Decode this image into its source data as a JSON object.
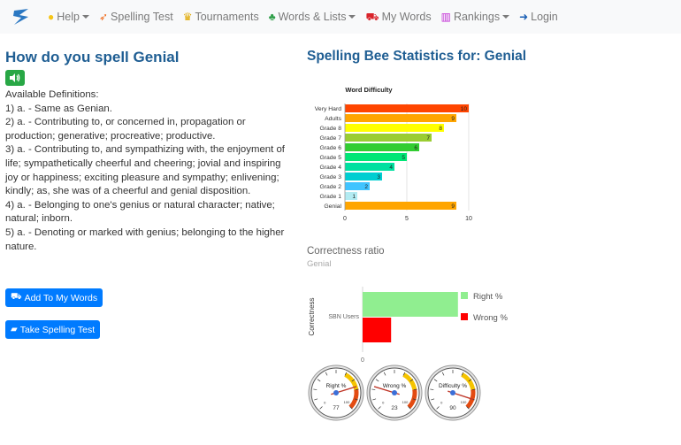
{
  "nav": {
    "help": "Help",
    "spelling_test": "Spelling Test",
    "tournaments": "Tournaments",
    "words_lists": "Words & Lists",
    "my_words": "My Words",
    "rankings": "Rankings",
    "login": "Login"
  },
  "word": {
    "title": "How do you spell Genial",
    "definitions_heading": "Available Definitions:",
    "definitions": [
      "1)  a. - Same as Genian.",
      "2)  a. - Contributing to, or concerned in, propagation or production; generative; procreative; productive.",
      "3)  a. - Contributing to, and sympathizing with, the enjoyment of life; sympathetically cheerful and cheering; jovial and inspiring joy or happiness; exciting pleasure and sympathy; enlivening; kindly; as, she was of a cheerful and genial disposition.",
      "4)  a. - Belonging to one's genius or natural character; native; natural; inborn.",
      "5)  a. - Denoting or marked with genius; belonging to the higher nature."
    ]
  },
  "buttons": {
    "add": "Add To My Words",
    "test": "Take Spelling Test"
  },
  "stats": {
    "title": "Spelling Bee Statistics for: Genial"
  },
  "chart_data": [
    {
      "type": "bar",
      "orientation": "horizontal",
      "title": "Word Difficulty",
      "categories": [
        "Very Hard",
        "Adults",
        "Grade 8",
        "Grade 7",
        "Grade 6",
        "Grade 5",
        "Grade 4",
        "Grade 3",
        "Grade 2",
        "Grade 1",
        "Genial"
      ],
      "values": [
        10,
        9,
        8,
        7,
        6,
        5,
        4,
        3,
        2,
        1,
        9
      ],
      "data_labels": [
        "10",
        "9",
        "8",
        "7",
        "6",
        "5",
        "4",
        "3",
        "2",
        "1",
        "9"
      ],
      "colors": [
        "#ff4500",
        "#ffa500",
        "#ffff00",
        "#9acd32",
        "#32cd32",
        "#00e676",
        "#00e0a0",
        "#00ced1",
        "#40c4ff",
        "#b2ebf2",
        "#ffa500"
      ],
      "xlim": [
        0,
        10
      ],
      "xticks": [
        "0",
        "5",
        "10"
      ]
    },
    {
      "type": "bar",
      "orientation": "horizontal",
      "title": "Correctness ratio",
      "subtitle": "Genial",
      "ylabel": "Correctness",
      "categories": [
        "SBN Users"
      ],
      "series": [
        {
          "name": "Right %",
          "values": [
            77
          ],
          "color": "#90ee90"
        },
        {
          "name": "Wrong %",
          "values": [
            23
          ],
          "color": "#ff0000"
        }
      ],
      "xticks": [
        "0"
      ],
      "xlim": [
        0,
        100
      ],
      "legend": "right"
    },
    {
      "type": "gauge",
      "gauges": [
        {
          "label": "Right %",
          "value": 77,
          "display": "77"
        },
        {
          "label": "Wrong %",
          "value": 23,
          "display": "23"
        },
        {
          "label": "Difficulty %",
          "value": 90,
          "display": "90"
        }
      ],
      "range": [
        0,
        100
      ],
      "tick_labels": [
        "0",
        "100"
      ]
    }
  ]
}
